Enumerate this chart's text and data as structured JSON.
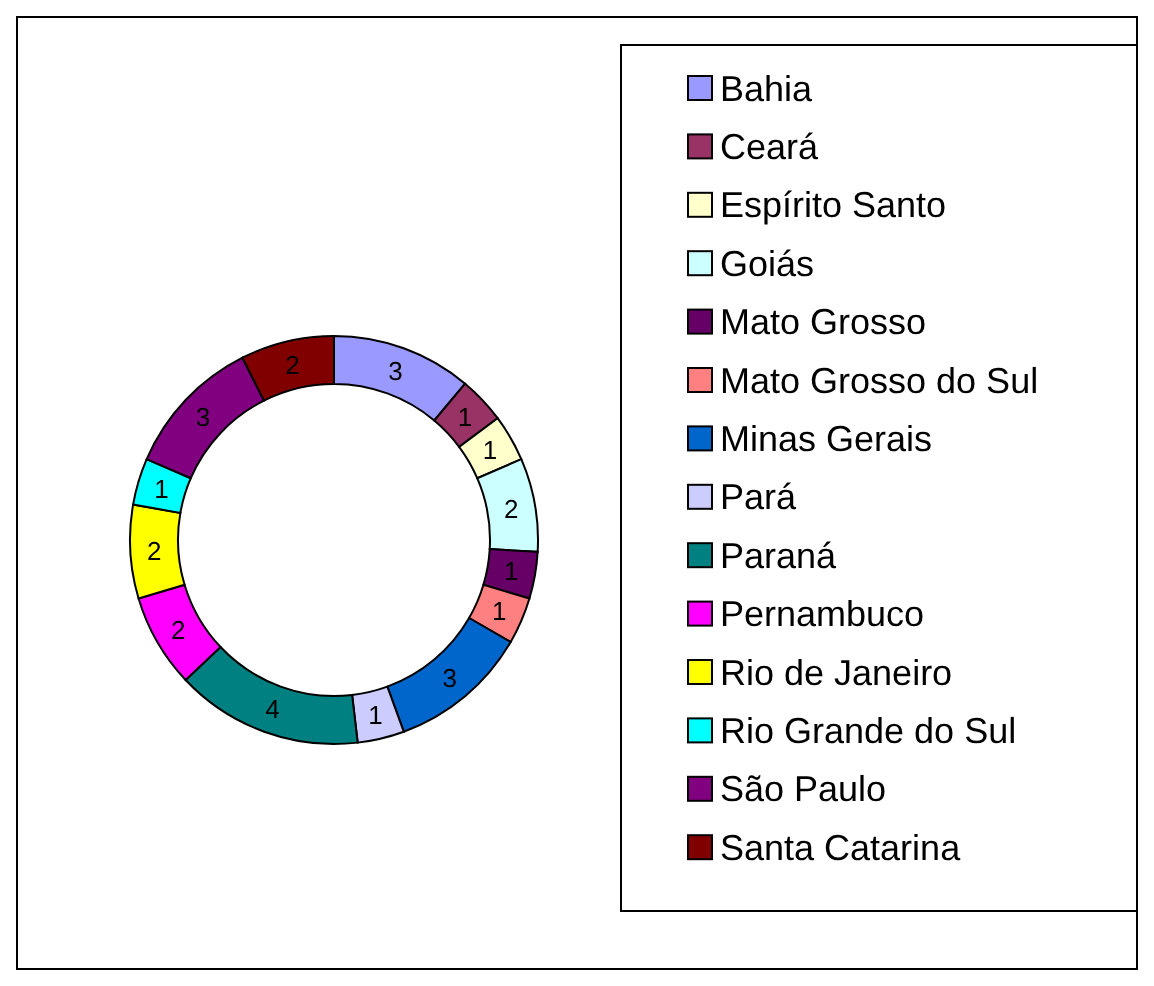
{
  "chart_data": {
    "type": "donut",
    "categories": [
      "Bahia",
      "Ceará",
      "Espírito Santo",
      "Goiás",
      "Mato Grosso",
      "Mato Grosso do Sul",
      "Minas Gerais",
      "Pará",
      "Paraná",
      "Pernambuco",
      "Rio de Janeiro",
      "Rio Grande do Sul",
      "São Paulo",
      "Santa Catarina"
    ],
    "values": [
      3,
      1,
      1,
      2,
      1,
      1,
      3,
      1,
      4,
      2,
      2,
      1,
      3,
      2
    ],
    "colors": [
      "#9999ff",
      "#993366",
      "#ffffcc",
      "#ccffff",
      "#660066",
      "#ff8080",
      "#0066cc",
      "#ccccff",
      "#008080",
      "#ff00ff",
      "#ffff00",
      "#00ffff",
      "#800080",
      "#800000"
    ],
    "data_labels": true,
    "legend": "right"
  }
}
